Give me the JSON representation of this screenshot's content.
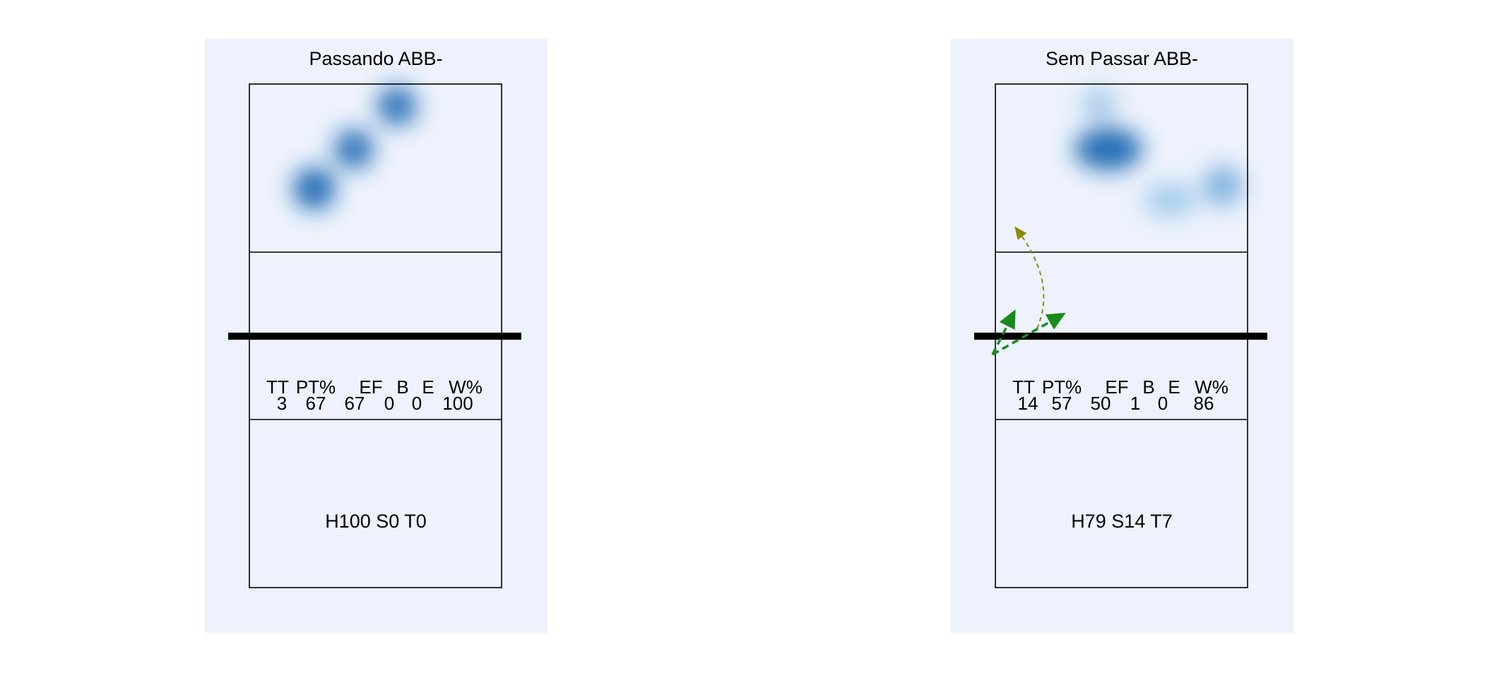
{
  "panels": [
    {
      "title": "Passando ABB-",
      "stats": {
        "headers": [
          "TT",
          "PT%",
          "EF",
          "B",
          "E",
          "W%"
        ],
        "values": [
          3,
          67,
          67,
          0,
          0,
          100
        ]
      },
      "summary": "H100 S0 T0"
    },
    {
      "title": "Sem Passar ABB-",
      "stats": {
        "headers": [
          "TT",
          "PT%",
          "EF",
          "B",
          "E",
          "W%"
        ],
        "values": [
          14,
          57,
          50,
          1,
          0,
          86
        ]
      },
      "summary": "H79 S14 T7"
    }
  ]
}
